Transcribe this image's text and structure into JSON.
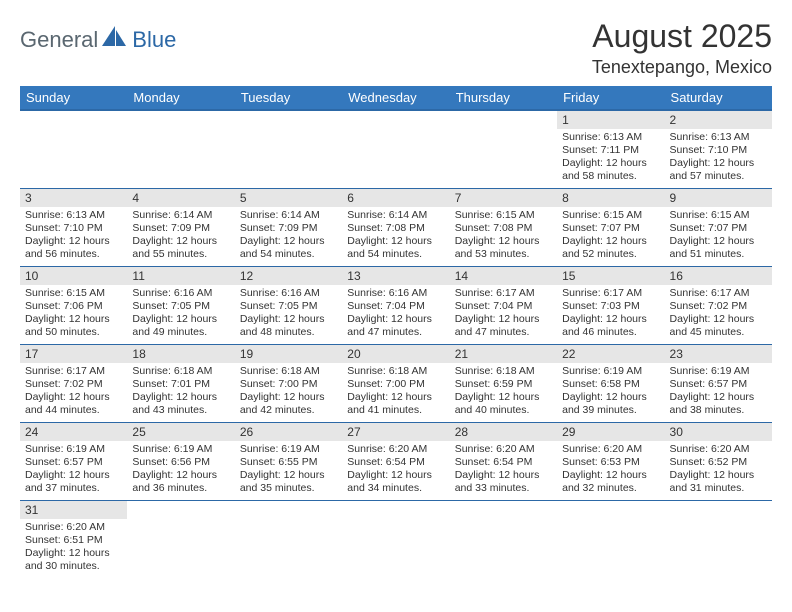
{
  "logo": {
    "general": "General",
    "blue": "Blue"
  },
  "title": "August 2025",
  "location": "Tenextepango, Mexico",
  "colors": {
    "header_bg": "#3478bd",
    "header_border": "#2c68a6",
    "daynum_bg": "#e6e6e6",
    "logo_gray": "#5a6770",
    "logo_blue": "#2c68a6"
  },
  "weekdays": [
    "Sunday",
    "Monday",
    "Tuesday",
    "Wednesday",
    "Thursday",
    "Friday",
    "Saturday"
  ],
  "weeks": [
    [
      null,
      null,
      null,
      null,
      null,
      {
        "n": "1",
        "sr": "Sunrise: 6:13 AM",
        "ss": "Sunset: 7:11 PM",
        "dl1": "Daylight: 12 hours",
        "dl2": "and 58 minutes."
      },
      {
        "n": "2",
        "sr": "Sunrise: 6:13 AM",
        "ss": "Sunset: 7:10 PM",
        "dl1": "Daylight: 12 hours",
        "dl2": "and 57 minutes."
      }
    ],
    [
      {
        "n": "3",
        "sr": "Sunrise: 6:13 AM",
        "ss": "Sunset: 7:10 PM",
        "dl1": "Daylight: 12 hours",
        "dl2": "and 56 minutes."
      },
      {
        "n": "4",
        "sr": "Sunrise: 6:14 AM",
        "ss": "Sunset: 7:09 PM",
        "dl1": "Daylight: 12 hours",
        "dl2": "and 55 minutes."
      },
      {
        "n": "5",
        "sr": "Sunrise: 6:14 AM",
        "ss": "Sunset: 7:09 PM",
        "dl1": "Daylight: 12 hours",
        "dl2": "and 54 minutes."
      },
      {
        "n": "6",
        "sr": "Sunrise: 6:14 AM",
        "ss": "Sunset: 7:08 PM",
        "dl1": "Daylight: 12 hours",
        "dl2": "and 54 minutes."
      },
      {
        "n": "7",
        "sr": "Sunrise: 6:15 AM",
        "ss": "Sunset: 7:08 PM",
        "dl1": "Daylight: 12 hours",
        "dl2": "and 53 minutes."
      },
      {
        "n": "8",
        "sr": "Sunrise: 6:15 AM",
        "ss": "Sunset: 7:07 PM",
        "dl1": "Daylight: 12 hours",
        "dl2": "and 52 minutes."
      },
      {
        "n": "9",
        "sr": "Sunrise: 6:15 AM",
        "ss": "Sunset: 7:07 PM",
        "dl1": "Daylight: 12 hours",
        "dl2": "and 51 minutes."
      }
    ],
    [
      {
        "n": "10",
        "sr": "Sunrise: 6:15 AM",
        "ss": "Sunset: 7:06 PM",
        "dl1": "Daylight: 12 hours",
        "dl2": "and 50 minutes."
      },
      {
        "n": "11",
        "sr": "Sunrise: 6:16 AM",
        "ss": "Sunset: 7:05 PM",
        "dl1": "Daylight: 12 hours",
        "dl2": "and 49 minutes."
      },
      {
        "n": "12",
        "sr": "Sunrise: 6:16 AM",
        "ss": "Sunset: 7:05 PM",
        "dl1": "Daylight: 12 hours",
        "dl2": "and 48 minutes."
      },
      {
        "n": "13",
        "sr": "Sunrise: 6:16 AM",
        "ss": "Sunset: 7:04 PM",
        "dl1": "Daylight: 12 hours",
        "dl2": "and 47 minutes."
      },
      {
        "n": "14",
        "sr": "Sunrise: 6:17 AM",
        "ss": "Sunset: 7:04 PM",
        "dl1": "Daylight: 12 hours",
        "dl2": "and 47 minutes."
      },
      {
        "n": "15",
        "sr": "Sunrise: 6:17 AM",
        "ss": "Sunset: 7:03 PM",
        "dl1": "Daylight: 12 hours",
        "dl2": "and 46 minutes."
      },
      {
        "n": "16",
        "sr": "Sunrise: 6:17 AM",
        "ss": "Sunset: 7:02 PM",
        "dl1": "Daylight: 12 hours",
        "dl2": "and 45 minutes."
      }
    ],
    [
      {
        "n": "17",
        "sr": "Sunrise: 6:17 AM",
        "ss": "Sunset: 7:02 PM",
        "dl1": "Daylight: 12 hours",
        "dl2": "and 44 minutes."
      },
      {
        "n": "18",
        "sr": "Sunrise: 6:18 AM",
        "ss": "Sunset: 7:01 PM",
        "dl1": "Daylight: 12 hours",
        "dl2": "and 43 minutes."
      },
      {
        "n": "19",
        "sr": "Sunrise: 6:18 AM",
        "ss": "Sunset: 7:00 PM",
        "dl1": "Daylight: 12 hours",
        "dl2": "and 42 minutes."
      },
      {
        "n": "20",
        "sr": "Sunrise: 6:18 AM",
        "ss": "Sunset: 7:00 PM",
        "dl1": "Daylight: 12 hours",
        "dl2": "and 41 minutes."
      },
      {
        "n": "21",
        "sr": "Sunrise: 6:18 AM",
        "ss": "Sunset: 6:59 PM",
        "dl1": "Daylight: 12 hours",
        "dl2": "and 40 minutes."
      },
      {
        "n": "22",
        "sr": "Sunrise: 6:19 AM",
        "ss": "Sunset: 6:58 PM",
        "dl1": "Daylight: 12 hours",
        "dl2": "and 39 minutes."
      },
      {
        "n": "23",
        "sr": "Sunrise: 6:19 AM",
        "ss": "Sunset: 6:57 PM",
        "dl1": "Daylight: 12 hours",
        "dl2": "and 38 minutes."
      }
    ],
    [
      {
        "n": "24",
        "sr": "Sunrise: 6:19 AM",
        "ss": "Sunset: 6:57 PM",
        "dl1": "Daylight: 12 hours",
        "dl2": "and 37 minutes."
      },
      {
        "n": "25",
        "sr": "Sunrise: 6:19 AM",
        "ss": "Sunset: 6:56 PM",
        "dl1": "Daylight: 12 hours",
        "dl2": "and 36 minutes."
      },
      {
        "n": "26",
        "sr": "Sunrise: 6:19 AM",
        "ss": "Sunset: 6:55 PM",
        "dl1": "Daylight: 12 hours",
        "dl2": "and 35 minutes."
      },
      {
        "n": "27",
        "sr": "Sunrise: 6:20 AM",
        "ss": "Sunset: 6:54 PM",
        "dl1": "Daylight: 12 hours",
        "dl2": "and 34 minutes."
      },
      {
        "n": "28",
        "sr": "Sunrise: 6:20 AM",
        "ss": "Sunset: 6:54 PM",
        "dl1": "Daylight: 12 hours",
        "dl2": "and 33 minutes."
      },
      {
        "n": "29",
        "sr": "Sunrise: 6:20 AM",
        "ss": "Sunset: 6:53 PM",
        "dl1": "Daylight: 12 hours",
        "dl2": "and 32 minutes."
      },
      {
        "n": "30",
        "sr": "Sunrise: 6:20 AM",
        "ss": "Sunset: 6:52 PM",
        "dl1": "Daylight: 12 hours",
        "dl2": "and 31 minutes."
      }
    ],
    [
      {
        "n": "31",
        "sr": "Sunrise: 6:20 AM",
        "ss": "Sunset: 6:51 PM",
        "dl1": "Daylight: 12 hours",
        "dl2": "and 30 minutes."
      },
      null,
      null,
      null,
      null,
      null,
      null
    ]
  ]
}
